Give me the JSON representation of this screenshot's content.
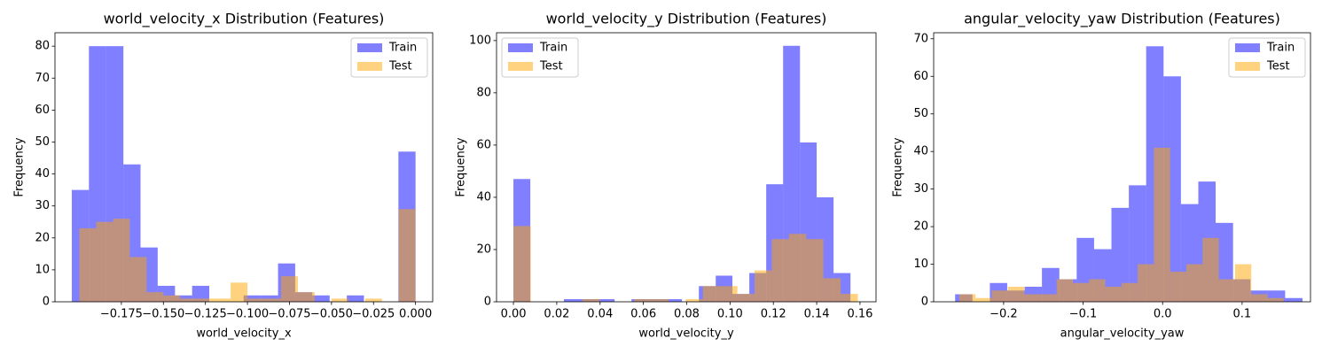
{
  "chart_data": [
    {
      "type": "histogram",
      "title": "world_velocity_x Distribution (Features)",
      "xlabel": "world_velocity_x",
      "ylabel": "Frequency",
      "xlim": [
        -0.2145,
        0.0102
      ],
      "ylim": [
        0,
        84.2
      ],
      "xticks": [
        {
          "value": -0.175,
          "label": "−0.175"
        },
        {
          "value": -0.15,
          "label": "−0.150"
        },
        {
          "value": -0.125,
          "label": "−0.125"
        },
        {
          "value": -0.1,
          "label": "−0.100"
        },
        {
          "value": -0.075,
          "label": "−0.075"
        },
        {
          "value": -0.05,
          "label": "−0.050"
        },
        {
          "value": -0.025,
          "label": "−0.025"
        },
        {
          "value": 0,
          "label": "0.000"
        }
      ],
      "yticks": [
        0,
        10,
        20,
        30,
        40,
        50,
        60,
        70,
        80
      ],
      "legend": "upper right",
      "series": [
        {
          "name": "Train",
          "color": "#0000ff",
          "alpha": 0.5,
          "bins": [
            -0.2045,
            -0.1943,
            -0.184,
            -0.1738,
            -0.1636,
            -0.1534,
            -0.1431,
            -0.1329,
            -0.1227,
            -0.1125,
            -0.1023,
            -0.092,
            -0.0818,
            -0.0716,
            -0.0614,
            -0.0511,
            -0.0409,
            -0.0307,
            -0.0205,
            -0.0102,
            0.0
          ],
          "values": [
            35,
            80,
            80,
            43,
            17,
            5,
            2,
            5,
            0,
            0,
            2,
            2,
            12,
            3,
            2,
            0,
            2,
            0,
            0,
            47
          ]
        },
        {
          "name": "Test",
          "color": "#ffa500",
          "alpha": 0.5,
          "bins": [
            -0.2,
            -0.19,
            -0.18,
            -0.17,
            -0.16,
            -0.15,
            -0.14,
            -0.13,
            -0.12,
            -0.11,
            -0.1,
            -0.09,
            -0.08,
            -0.07,
            -0.06,
            -0.05,
            -0.04,
            -0.03,
            -0.02,
            -0.01,
            0.0
          ],
          "values": [
            23,
            25,
            26,
            14,
            3,
            2,
            1,
            1,
            1,
            6,
            1,
            1,
            8,
            3,
            0,
            1,
            0,
            1,
            0,
            29
          ]
        }
      ]
    },
    {
      "type": "histogram",
      "title": "world_velocity_y Distribution (Features)",
      "xlabel": "world_velocity_y",
      "ylabel": "Frequency",
      "xlim": [
        -0.0078,
        0.1674
      ],
      "ylim": [
        0,
        103
      ],
      "xticks": [
        {
          "value": 0,
          "label": "0.00"
        },
        {
          "value": 0.02,
          "label": "0.02"
        },
        {
          "value": 0.04,
          "label": "0.04"
        },
        {
          "value": 0.06,
          "label": "0.06"
        },
        {
          "value": 0.08,
          "label": "0.08"
        },
        {
          "value": 0.1,
          "label": "0.10"
        },
        {
          "value": 0.12,
          "label": "0.12"
        },
        {
          "value": 0.14,
          "label": "0.14"
        },
        {
          "value": 0.16,
          "label": "0.16"
        }
      ],
      "yticks": [
        0,
        20,
        40,
        60,
        80,
        100
      ],
      "legend": "upper left",
      "series": [
        {
          "name": "Train",
          "color": "#0000ff",
          "alpha": 0.5,
          "bins": [
            0.0,
            0.0078,
            0.0156,
            0.0233,
            0.0311,
            0.0389,
            0.0467,
            0.0545,
            0.0622,
            0.07,
            0.0778,
            0.0856,
            0.0934,
            0.1011,
            0.1089,
            0.1167,
            0.1245,
            0.1323,
            0.14,
            0.1478,
            0.1556
          ],
          "values": [
            47,
            0,
            0,
            1,
            1,
            1,
            0,
            1,
            1,
            1,
            0,
            6,
            10,
            3,
            11,
            45,
            98,
            61,
            40,
            11
          ]
        },
        {
          "name": "Test",
          "color": "#ffa500",
          "alpha": 0.5,
          "bins": [
            0.0,
            0.008,
            0.0159,
            0.0239,
            0.0318,
            0.0398,
            0.0477,
            0.0557,
            0.0636,
            0.0716,
            0.0795,
            0.0875,
            0.0954,
            0.1034,
            0.1113,
            0.1193,
            0.1272,
            0.1352,
            0.1431,
            0.1511,
            0.159
          ],
          "values": [
            29,
            0,
            0,
            0,
            1,
            0,
            0,
            1,
            1,
            0,
            1,
            6,
            6,
            3,
            12,
            24,
            26,
            24,
            9,
            3
          ]
        }
      ]
    },
    {
      "type": "histogram",
      "title": "angular_velocity_yaw Distribution (Features)",
      "xlabel": "angular_velocity_yaw",
      "ylabel": "Frequency",
      "xlim": [
        -0.288,
        0.186
      ],
      "ylim": [
        0,
        71.6
      ],
      "xticks": [
        {
          "value": -0.2,
          "label": "−0.2"
        },
        {
          "value": -0.1,
          "label": "−0.1"
        },
        {
          "value": 0,
          "label": "0.0"
        },
        {
          "value": 0.1,
          "label": "0.1"
        }
      ],
      "yticks": [
        0,
        10,
        20,
        30,
        40,
        50,
        60,
        70
      ],
      "legend": "upper right",
      "series": [
        {
          "name": "Train",
          "color": "#0000ff",
          "alpha": 0.5,
          "bins": [
            -0.261,
            -0.2392,
            -0.2173,
            -0.1955,
            -0.1736,
            -0.1518,
            -0.1299,
            -0.1081,
            -0.0862,
            -0.0644,
            -0.0425,
            -0.0207,
            0.0012,
            0.023,
            0.0449,
            0.0667,
            0.0886,
            0.1104,
            0.1323,
            0.1541,
            0.176
          ],
          "values": [
            2,
            0,
            5,
            3,
            4,
            9,
            6,
            17,
            14,
            25,
            31,
            68,
            60,
            26,
            32,
            21,
            6,
            3,
            3,
            1
          ]
        },
        {
          "name": "Test",
          "color": "#ffa500",
          "alpha": 0.5,
          "bins": [
            -0.2557,
            -0.2353,
            -0.2149,
            -0.1945,
            -0.1741,
            -0.1537,
            -0.1333,
            -0.1129,
            -0.0925,
            -0.0721,
            -0.0517,
            -0.0313,
            -0.0109,
            0.0095,
            0.0299,
            0.0503,
            0.0707,
            0.0911,
            0.1115,
            0.1319,
            0.1523
          ],
          "values": [
            2,
            1,
            3,
            4,
            2,
            2,
            6,
            5,
            6,
            4,
            5,
            10,
            41,
            8,
            10,
            17,
            6,
            10,
            2,
            1
          ]
        }
      ]
    }
  ]
}
